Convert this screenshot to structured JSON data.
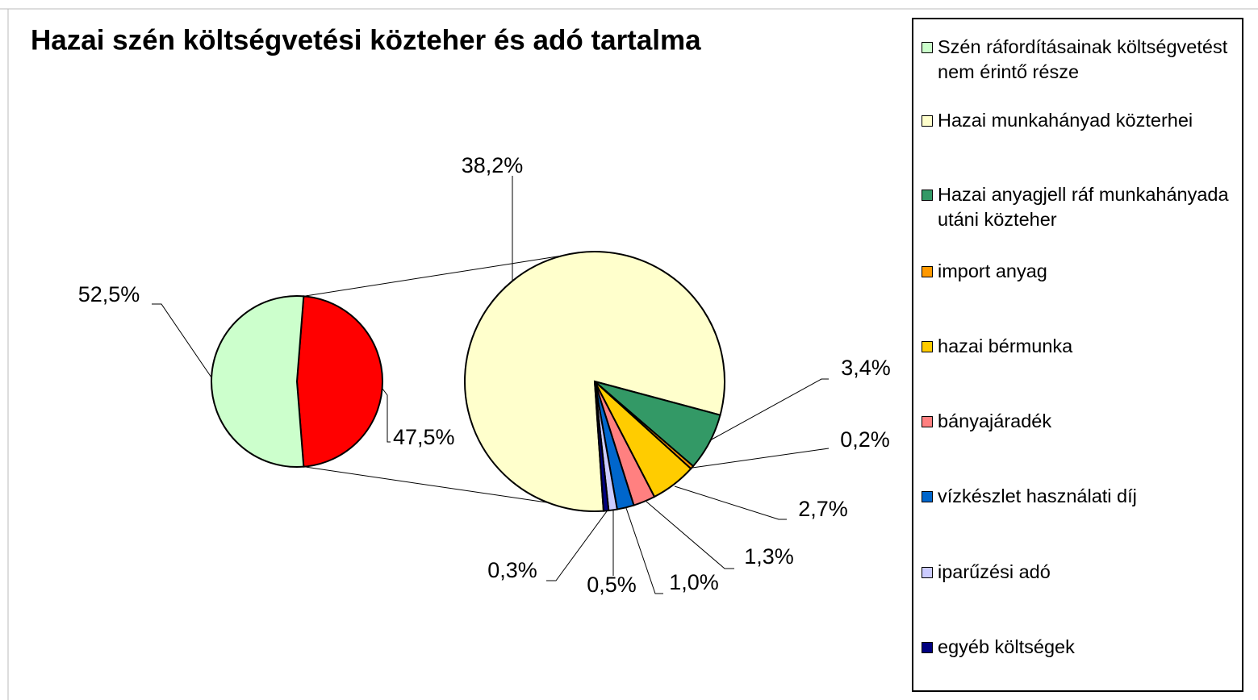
{
  "chart_data": {
    "type": "pie_of_pie",
    "title": "Hazai szén költségvetési közteher és adó tartalma",
    "categories": [
      "Szén ráfordításainak költségvetést nem érintő része",
      "Hazai munkahányad közterhei",
      "Hazai anyagjell ráf munkahányada utáni közteher",
      "import anyag",
      "hazai bérmunka",
      "bányajáradék",
      "vízkészlet használati díj",
      "iparűzési adó",
      "egyéb költségek"
    ],
    "values": [
      52.5,
      38.2,
      3.4,
      0.2,
      2.7,
      1.3,
      1.0,
      0.5,
      0.3
    ],
    "value_labels": [
      "52,5%",
      "38,2%",
      "3,4%",
      "0,2%",
      "2,7%",
      "1,3%",
      "1,0%",
      "0,5%",
      "0,3%"
    ],
    "colors": [
      "#ccffcc",
      "#ffffcc",
      "#339966",
      "#ff9900",
      "#ffcc00",
      "#ff8080",
      "#0066cc",
      "#ccccff",
      "#000080"
    ],
    "other_value": 47.5,
    "other_value_label": "47,5%",
    "other_color": "#ff0000",
    "legend": "right"
  }
}
